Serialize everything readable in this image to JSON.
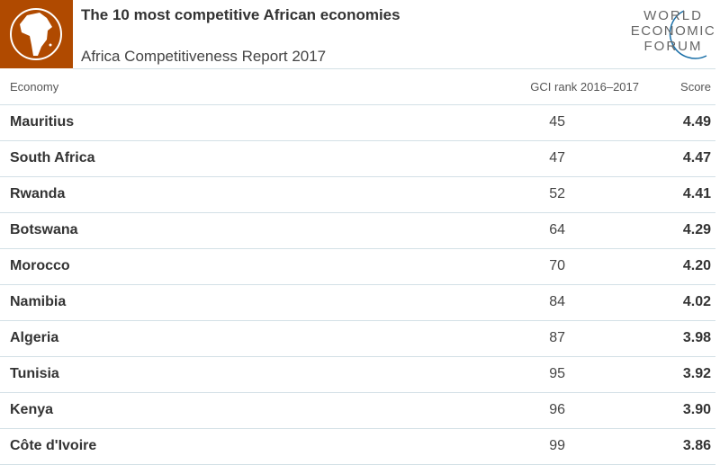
{
  "header": {
    "title": "The 10 most competitive African economies",
    "subtitle": "Africa Competitiveness Report 2017",
    "brand_color": "#b04a00",
    "icon": "africa-globe-icon",
    "logo": {
      "lines": [
        "WORLD",
        "ECONOMIC",
        "FORUM"
      ],
      "accent": "#1a6fa8"
    }
  },
  "chart_data": {
    "type": "table",
    "title": "The 10 most competitive African economies",
    "columns": [
      "Economy",
      "GCI rank 2016–2017",
      "Score"
    ],
    "rows": [
      {
        "economy": "Mauritius",
        "rank": "45",
        "score": "4.49"
      },
      {
        "economy": "South Africa",
        "rank": "47",
        "score": "4.47"
      },
      {
        "economy": "Rwanda",
        "rank": "52",
        "score": "4.41"
      },
      {
        "economy": "Botswana",
        "rank": "64",
        "score": "4.29"
      },
      {
        "economy": "Morocco",
        "rank": "70",
        "score": "4.20"
      },
      {
        "economy": "Namibia",
        "rank": "84",
        "score": "4.02"
      },
      {
        "economy": "Algeria",
        "rank": "87",
        "score": "3.98"
      },
      {
        "economy": "Tunisia",
        "rank": "95",
        "score": "3.92"
      },
      {
        "economy": "Kenya",
        "rank": "96",
        "score": "3.90"
      },
      {
        "economy": "Côte d'Ivoire",
        "rank": "99",
        "score": "3.86"
      }
    ]
  }
}
